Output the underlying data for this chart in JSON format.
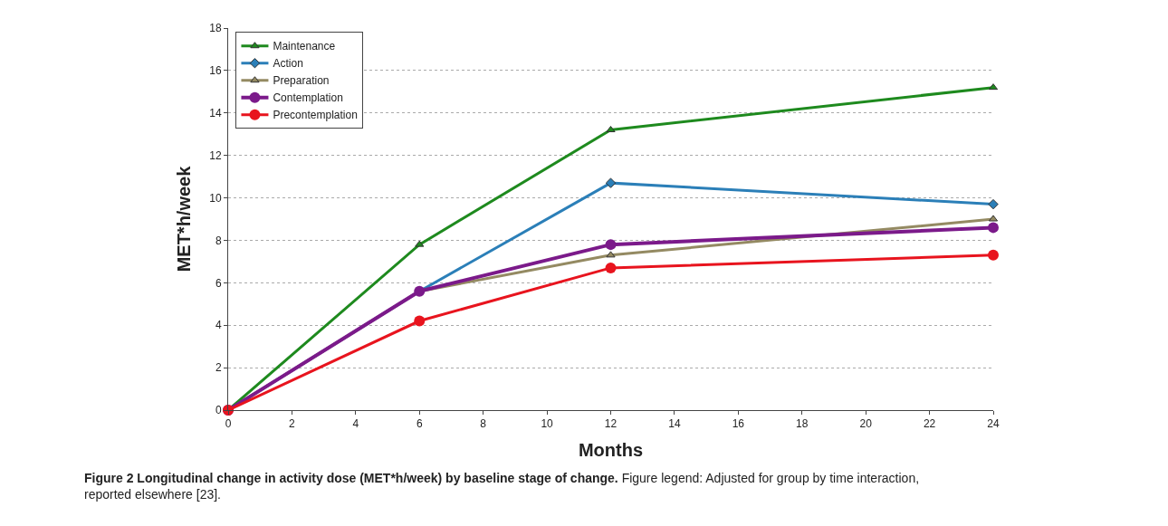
{
  "chart_data": {
    "type": "line",
    "xlabel": "Months",
    "ylabel": "MET*h/week",
    "x": [
      0,
      6,
      12,
      24
    ],
    "series": [
      {
        "name": "Maintenance",
        "color": "#1e8a1e",
        "marker": "triangle",
        "values": [
          0,
          7.8,
          13.2,
          15.2
        ]
      },
      {
        "name": "Action",
        "color": "#2b7fb8",
        "marker": "diamond",
        "values": [
          0,
          5.6,
          10.7,
          9.7
        ]
      },
      {
        "name": "Preparation",
        "color": "#948a62",
        "marker": "triangle",
        "values": [
          0,
          5.6,
          7.3,
          9.0
        ]
      },
      {
        "name": "Contemplation",
        "color": "#7b1a8a",
        "marker": "circle",
        "values": [
          0,
          5.6,
          7.8,
          8.6
        ]
      },
      {
        "name": "Precontemplation",
        "color": "#e8141e",
        "marker": "circle",
        "values": [
          0,
          4.2,
          6.7,
          7.3
        ]
      }
    ],
    "xlim": [
      0,
      24
    ],
    "xticks": [
      0,
      2,
      4,
      6,
      8,
      10,
      12,
      14,
      16,
      18,
      20,
      22,
      24
    ],
    "ylim": [
      0,
      18
    ],
    "yticks": [
      0,
      2,
      4,
      6,
      8,
      10,
      12,
      14,
      16,
      18
    ],
    "grid": "y",
    "legend": "top left",
    "line_style": "solid",
    "annotations": [
      "Figure 2 Longitudinal change in activity dose (MET*h/week) by baseline stage of change.",
      "Figure legend: Adjusted for group by time interaction, reported elsewhere [23]."
    ]
  }
}
